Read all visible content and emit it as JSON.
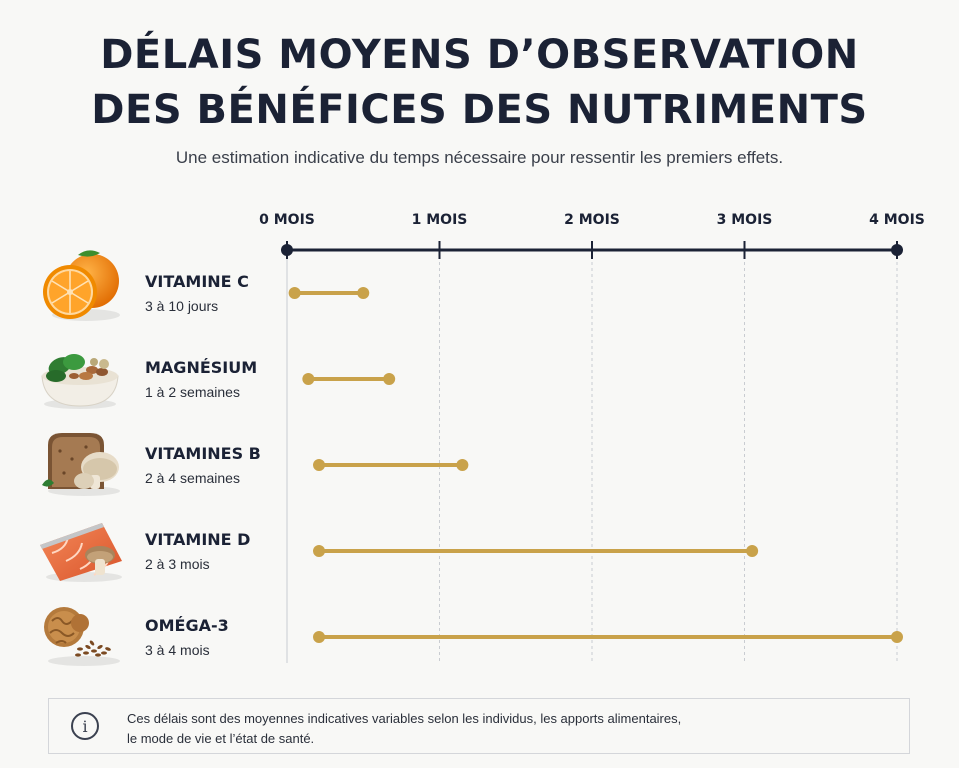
{
  "header": {
    "title_line1": "DÉLAIS MOYENS D’OBSERVATION",
    "title_line2": "DES BÉNÉFICES DES NUTRIMENTS",
    "subtitle": "Une estimation indicative du temps nécessaire pour ressentir les premiers effets."
  },
  "chart_data": {
    "type": "range-bar",
    "x_unit": "mois",
    "xlim": [
      0,
      4
    ],
    "x_ticks": [
      {
        "value": 0,
        "label": "0 MOIS"
      },
      {
        "value": 1,
        "label": "1 MOIS"
      },
      {
        "value": 2,
        "label": "2 MOIS"
      },
      {
        "value": 3,
        "label": "3 MOIS"
      },
      {
        "value": 4,
        "label": "4 MOIS"
      }
    ],
    "grid": true,
    "colors": {
      "axis": "#1b2235",
      "bar": "#c9a24a",
      "grid": "#c9ccd1"
    },
    "rows": [
      {
        "name": "VITAMINE C",
        "range_label": "3 à 10 jours",
        "start": 0.05,
        "end": 0.5,
        "icon": "orange-icon"
      },
      {
        "name": "MAGNÉSIUM",
        "range_label": "1 à 2 semaines",
        "start": 0.14,
        "end": 0.67,
        "icon": "spinach-nuts-bowl-icon"
      },
      {
        "name": "VITAMINES B",
        "range_label": "2 à 4 semaines",
        "start": 0.21,
        "end": 1.15,
        "icon": "bread-mushroom-icon"
      },
      {
        "name": "VITAMINE D",
        "range_label": "2 à 3 mois",
        "start": 0.21,
        "end": 3.05,
        "icon": "salmon-mushroom-icon"
      },
      {
        "name": "OMÉGA-3",
        "range_label": "3 à 4 mois",
        "start": 0.21,
        "end": 4.0,
        "icon": "walnut-flaxseed-icon"
      }
    ]
  },
  "footer": {
    "icon": "info-icon",
    "note_line1": "Ces délais sont des moyennes indicatives variables selon les individus, les apports alimentaires,",
    "note_line2": "le mode de vie et l’état de santé."
  }
}
